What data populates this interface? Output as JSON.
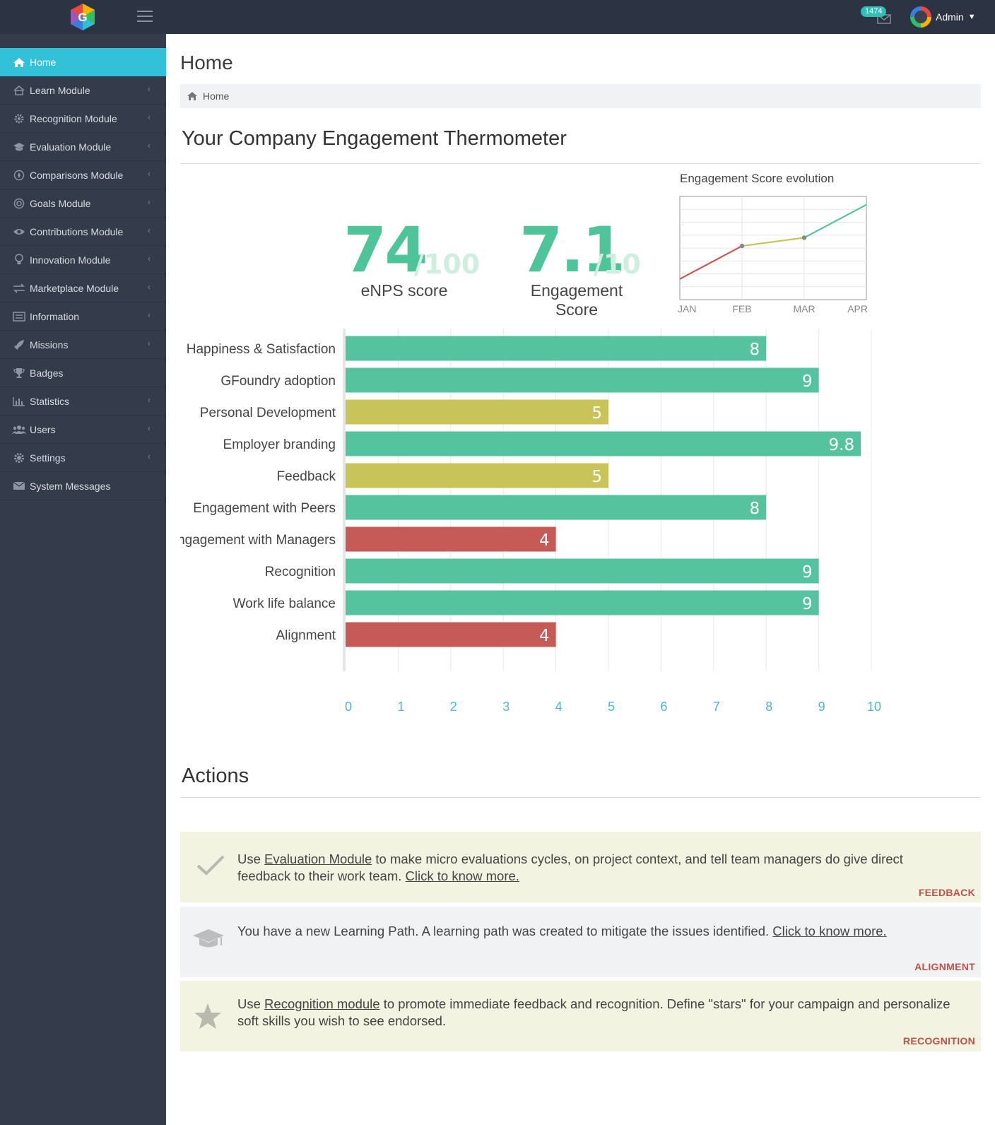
{
  "topbar": {
    "mail_count": "1474",
    "user_name": "Admin"
  },
  "sidebar": {
    "items": [
      {
        "label": "Home",
        "icon": "home-icon",
        "active": true
      },
      {
        "label": "Learn Module",
        "icon": "home-outline-icon",
        "expandable": true
      },
      {
        "label": "Recognition Module",
        "icon": "gear-icon",
        "expandable": true
      },
      {
        "label": "Evaluation Module",
        "icon": "graduation-cap-icon",
        "expandable": true
      },
      {
        "label": "Comparisons Module",
        "icon": "compass-icon",
        "expandable": true
      },
      {
        "label": "Goals Module",
        "icon": "target-icon",
        "expandable": true
      },
      {
        "label": "Contributions Module",
        "icon": "eye-icon",
        "expandable": true
      },
      {
        "label": "Innovation Module",
        "icon": "lightbulb-icon",
        "expandable": true
      },
      {
        "label": "Marketplace Module",
        "icon": "exchange-icon",
        "expandable": true
      },
      {
        "label": "Information",
        "icon": "list-icon",
        "expandable": true
      },
      {
        "label": "Missions",
        "icon": "rocket-icon",
        "expandable": true
      },
      {
        "label": "Badges",
        "icon": "trophy-icon",
        "expandable": false
      },
      {
        "label": "Statistics",
        "icon": "bar-chart-icon",
        "expandable": true
      },
      {
        "label": "Users",
        "icon": "users-icon",
        "expandable": true
      },
      {
        "label": "Settings",
        "icon": "cog-icon",
        "expandable": true
      },
      {
        "label": "System Messages",
        "icon": "envelope-icon",
        "expandable": false
      }
    ]
  },
  "page": {
    "title": "Home",
    "breadcrumb": "Home",
    "thermometer_title": "Your Company Engagement Thermometer",
    "actions_title": "Actions"
  },
  "scores": {
    "enps_value": "74",
    "enps_max": "/100",
    "enps_label": "eNPS score",
    "engagement_value": "7.1",
    "engagement_max": "/10",
    "engagement_label": "Engagement Score"
  },
  "colors": {
    "green": "#56c39f",
    "yellow": "#c9c45a",
    "red": "#c65a56",
    "accent": "#33c1d9"
  },
  "chart_data": [
    {
      "type": "line",
      "title": "Engagement Score evolution",
      "categories": [
        "JAN",
        "FEB",
        "MAR",
        "APR"
      ],
      "values": [
        6.0,
        6.8,
        7.0,
        7.8
      ],
      "segment_colors": [
        "#c65a56",
        "#c9c45a",
        "#56c39f"
      ],
      "ylim": [
        5.5,
        8.0
      ],
      "grid": true
    },
    {
      "type": "bar",
      "orientation": "horizontal",
      "categories": [
        "Happiness & Satisfaction",
        "GFoundry adoption",
        "Personal Development",
        "Employer branding",
        "Feedback",
        "Engagement with Peers",
        "Engagement with Managers",
        "Recognition",
        "Work life balance",
        "Alignment"
      ],
      "values": [
        8,
        9,
        5,
        9.8,
        5,
        8,
        4,
        9,
        9,
        4
      ],
      "labels": [
        "8",
        "9",
        "5",
        "9.8",
        "5",
        "8",
        "4",
        "9",
        "9",
        "4"
      ],
      "colors": [
        "green",
        "green",
        "yellow",
        "green",
        "yellow",
        "green",
        "red",
        "green",
        "green",
        "red"
      ],
      "xlim": [
        0,
        10
      ],
      "ticks": [
        "0",
        "1",
        "2",
        "3",
        "4",
        "5",
        "6",
        "7",
        "8",
        "9",
        "10"
      ],
      "grid": true
    }
  ],
  "actions": [
    {
      "icon": "check-icon",
      "pre": "Use ",
      "link1": "Evaluation Module",
      "mid": " to make micro evaluations cycles, on project context, and tell team managers do give direct feedback to their work team. ",
      "link2": "Click to know more.",
      "tag": "FEEDBACK",
      "bg": "#f3f3e1"
    },
    {
      "icon": "graduation-cap-icon",
      "pre": "You have a new Learning Path. A learning path was created to mitigate the issues identified. ",
      "link2": "Click to know more.",
      "tag": "ALIGNMENT",
      "bg": "#f1f2f4"
    },
    {
      "icon": "star-icon",
      "pre": "Use ",
      "link1": "Recognition module",
      "mid": " to promote immediate feedback and recognition. Define \"stars\" for your campaign and personalize soft skills you wish to see endorsed.",
      "tag": "RECOGNITION",
      "bg": "#f3f3e1"
    }
  ]
}
